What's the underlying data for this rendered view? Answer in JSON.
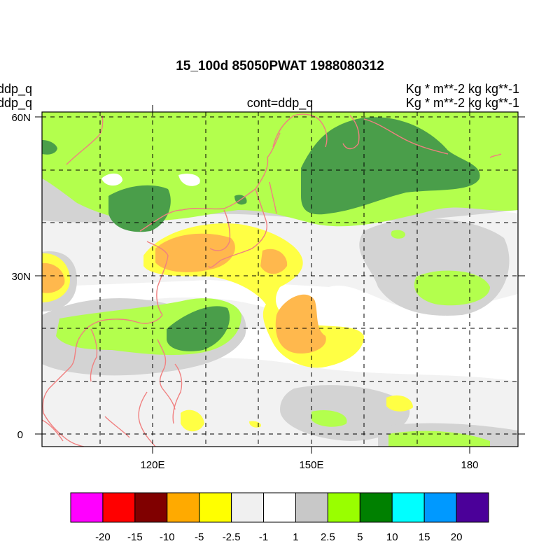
{
  "header": {
    "title": "15_100d 85050PWAT  1988080312",
    "left_line1": "ddp_q",
    "left_line2": "ddp_q",
    "center_label": "cont=ddp_q",
    "right_line1": "Kg  * m**-2 kg kg**-1",
    "right_line2": "Kg  * m**-2 kg kg**-1"
  },
  "map": {
    "lat_labels": [
      "60N",
      "30N",
      "0"
    ],
    "lon_labels": [
      "120E",
      "150E",
      "180"
    ],
    "coastline_color": "#f08080",
    "gridline_style": "dashed"
  },
  "colorbar": {
    "colors": [
      "#ff00ff",
      "#ff0000",
      "#800000",
      "#ffaa00",
      "#ffff00",
      "#f0f0f0",
      "#ffffff",
      "#c8c8c8",
      "#99ff00",
      "#008000",
      "#00ffff",
      "#0099ff",
      "#4b0099"
    ],
    "labels": [
      "-20",
      "-15",
      "-10",
      "-5",
      "-2.5",
      "-1",
      "1",
      "2.5",
      "5",
      "10",
      "15",
      "20"
    ]
  },
  "fill_colors": {
    "light_gray": "#f2f2f2",
    "gray": "#d3d3d3",
    "light_green": "#b3ff4d",
    "dark_green": "#4a9e4a",
    "yellow": "#ffff44",
    "orange": "#ffb84d"
  }
}
